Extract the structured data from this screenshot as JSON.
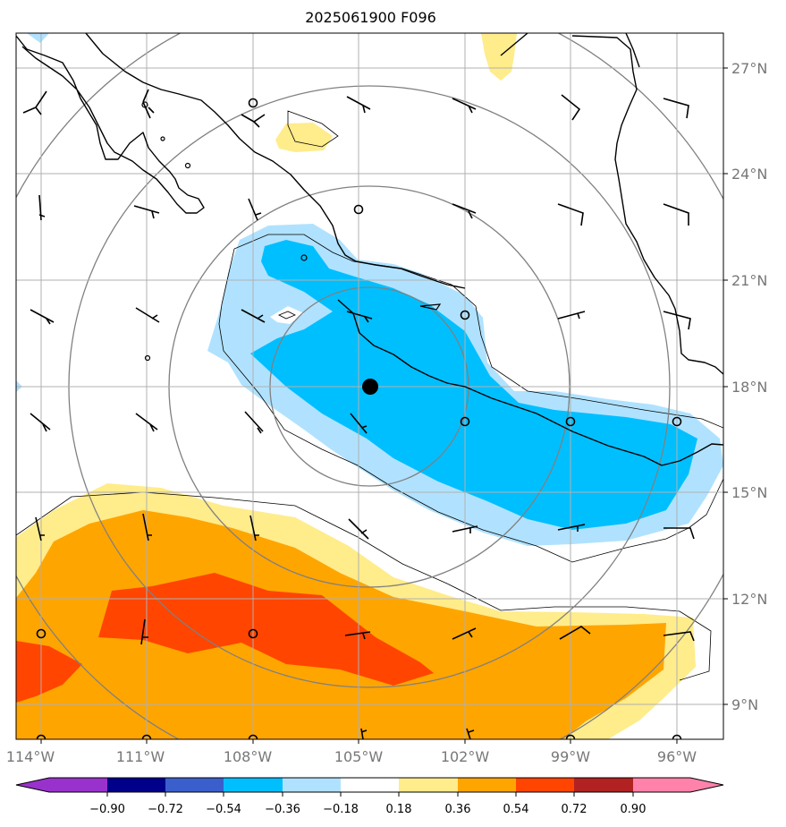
{
  "title": "2025061900 F096",
  "lon_labels": [
    "114°W",
    "111°W",
    "108°W",
    "105°W",
    "102°W",
    "99°W",
    "96°W"
  ],
  "lat_labels": [
    "27°N",
    "24°N",
    "21°N",
    "18°N",
    "15°N",
    "12°N",
    "9°N"
  ],
  "colorbar": {
    "ticks": [
      "−0.90",
      "−0.72",
      "−0.54",
      "−0.36",
      "−0.18",
      "0.18",
      "0.36",
      "0.54",
      "0.72",
      "0.90"
    ],
    "colors": [
      "#9932CC",
      "#00008B",
      "#3A5FCD",
      "#00BFFF",
      "#B0E2FF",
      "#FFFFFF",
      "#FFEC8B",
      "#FFA500",
      "#FF4500",
      "#B22222",
      "#FF82AB"
    ]
  },
  "center_marker": {
    "lon": -104.6,
    "lat": 18.0
  },
  "fields": {
    "land_outline": "#000000",
    "range_rings": "#808080",
    "grid": "#b0b0b0"
  }
}
